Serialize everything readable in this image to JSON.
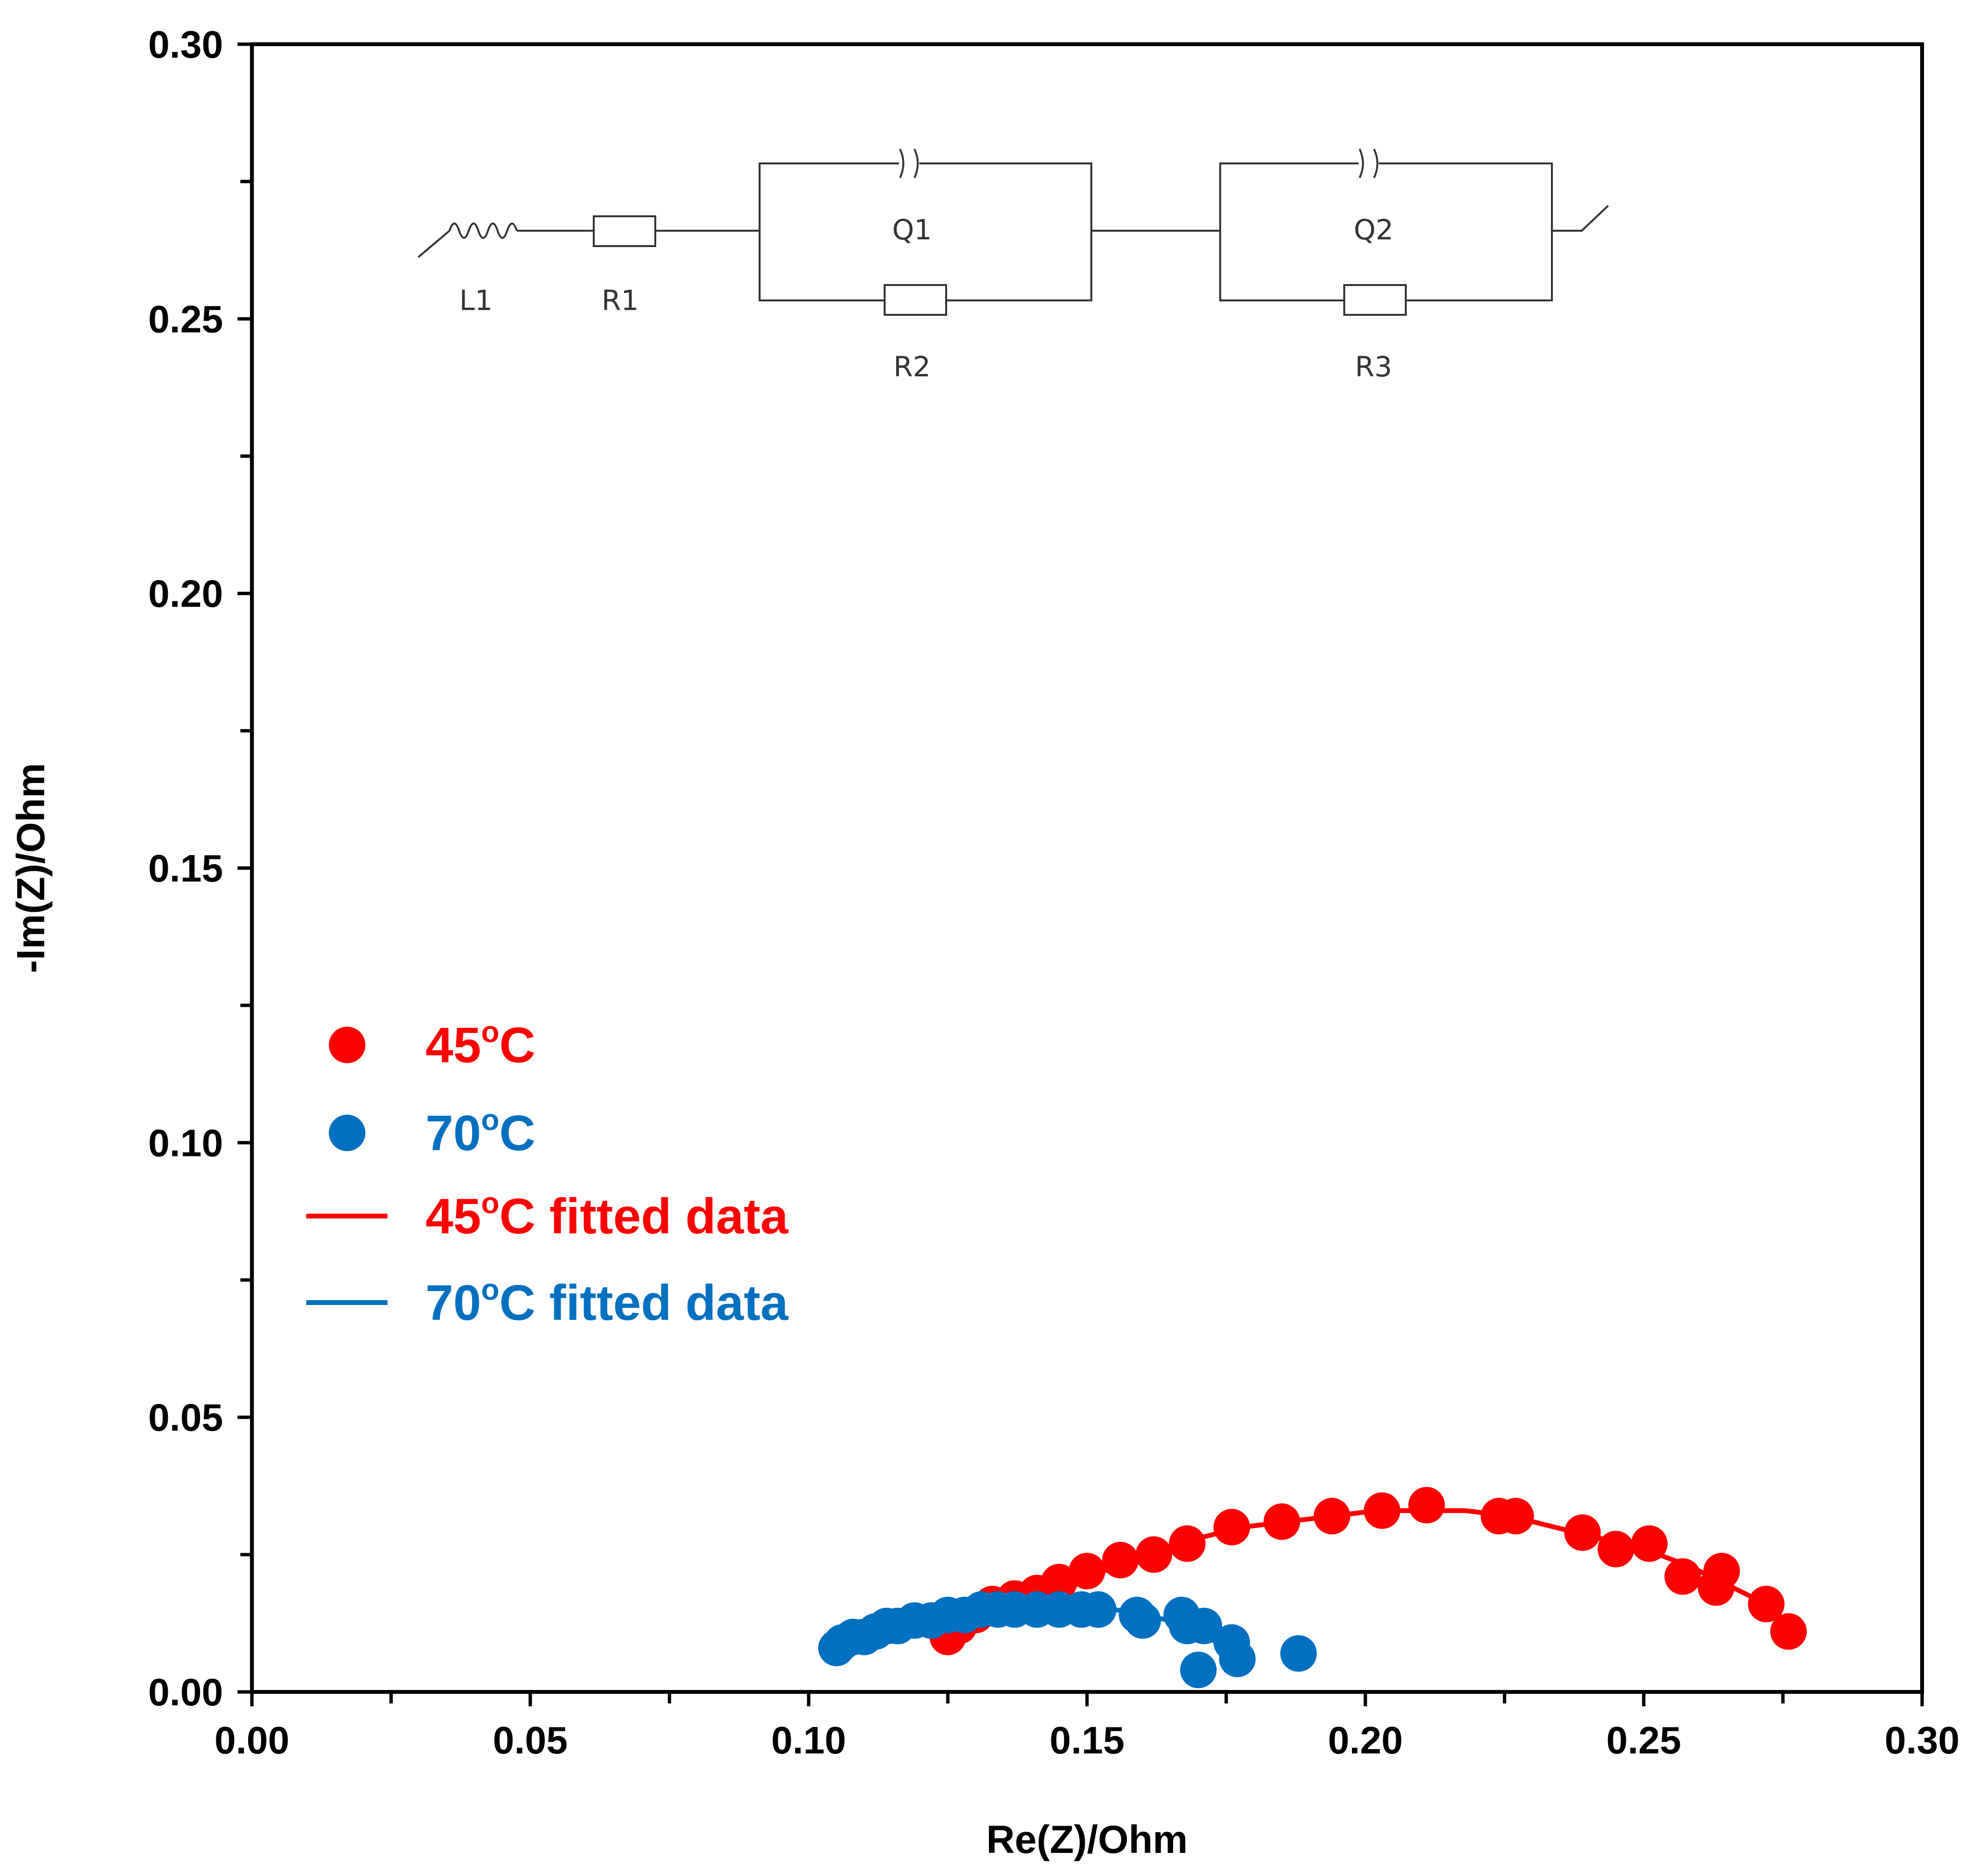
{
  "chart_data": {
    "type": "scatter",
    "title": "",
    "xlabel": "Re(Z)/Ohm",
    "ylabel": "-Im(Z)/Ohm",
    "xlim": [
      0.0,
      0.3
    ],
    "ylim": [
      0.0,
      0.3
    ],
    "x_ticks": [
      "0.00",
      "0.05",
      "0.10",
      "0.15",
      "0.20",
      "0.25",
      "0.30"
    ],
    "y_ticks": [
      "0.00",
      "0.05",
      "0.10",
      "0.15",
      "0.20",
      "0.25",
      "0.30"
    ],
    "legend_position": "center-left",
    "series": [
      {
        "name": "45oC",
        "label_main": "45",
        "label_sup": "o",
        "label_suffix": "C",
        "kind": "marker",
        "color": "#ff0000",
        "x": [
          0.125,
          0.127,
          0.13,
          0.133,
          0.137,
          0.141,
          0.145,
          0.15,
          0.156,
          0.162,
          0.168,
          0.176,
          0.185,
          0.194,
          0.203,
          0.211,
          0.224,
          0.227,
          0.239,
          0.245,
          0.251,
          0.257,
          0.263,
          0.264,
          0.272,
          0.276
        ],
        "y": [
          0.01,
          0.012,
          0.014,
          0.016,
          0.017,
          0.018,
          0.02,
          0.022,
          0.024,
          0.025,
          0.027,
          0.03,
          0.031,
          0.032,
          0.033,
          0.034,
          0.032,
          0.032,
          0.029,
          0.026,
          0.027,
          0.021,
          0.019,
          0.022,
          0.016,
          0.011
        ]
      },
      {
        "name": "70oC",
        "label_main": "70",
        "label_sup": "o",
        "label_suffix": "C",
        "kind": "marker",
        "color": "#0070c0",
        "x": [
          0.105,
          0.106,
          0.108,
          0.11,
          0.112,
          0.114,
          0.116,
          0.119,
          0.122,
          0.125,
          0.128,
          0.131,
          0.134,
          0.137,
          0.141,
          0.145,
          0.149,
          0.152,
          0.159,
          0.16,
          0.167,
          0.168,
          0.171,
          0.176,
          0.177,
          0.17,
          0.188
        ],
        "y": [
          0.008,
          0.009,
          0.01,
          0.01,
          0.011,
          0.012,
          0.012,
          0.013,
          0.013,
          0.014,
          0.014,
          0.015,
          0.015,
          0.015,
          0.015,
          0.015,
          0.015,
          0.015,
          0.014,
          0.013,
          0.014,
          0.012,
          0.012,
          0.009,
          0.006,
          0.004,
          0.007
        ]
      },
      {
        "name": "45oC fitted data",
        "label_main": "45",
        "label_sup": "o",
        "label_suffix": "C fitted data",
        "kind": "line",
        "color": "#ff0000",
        "x": [
          0.126,
          0.13,
          0.135,
          0.14,
          0.145,
          0.15,
          0.156,
          0.162,
          0.17,
          0.178,
          0.186,
          0.194,
          0.202,
          0.21,
          0.218,
          0.226,
          0.234,
          0.242,
          0.25,
          0.258,
          0.264,
          0.27,
          0.276
        ],
        "y": [
          0.011,
          0.013,
          0.015,
          0.017,
          0.019,
          0.021,
          0.023,
          0.025,
          0.028,
          0.03,
          0.031,
          0.032,
          0.033,
          0.033,
          0.033,
          0.032,
          0.03,
          0.028,
          0.026,
          0.023,
          0.02,
          0.017,
          0.012
        ]
      },
      {
        "name": "70oC fitted data",
        "label_main": "70",
        "label_sup": "o",
        "label_suffix": "C fitted data",
        "kind": "line",
        "color": "#0070c0",
        "x": [
          0.105,
          0.11,
          0.115,
          0.12,
          0.125,
          0.13,
          0.135,
          0.14,
          0.145,
          0.15,
          0.155,
          0.16,
          0.165,
          0.17,
          0.175,
          0.178
        ],
        "y": [
          0.008,
          0.01,
          0.012,
          0.013,
          0.014,
          0.015,
          0.015,
          0.016,
          0.016,
          0.015,
          0.015,
          0.014,
          0.013,
          0.011,
          0.008,
          0.006
        ]
      }
    ],
    "inset_circuit": {
      "elements": [
        "L1",
        "R1",
        "Q1",
        "R2",
        "Q2",
        "R3"
      ]
    }
  }
}
